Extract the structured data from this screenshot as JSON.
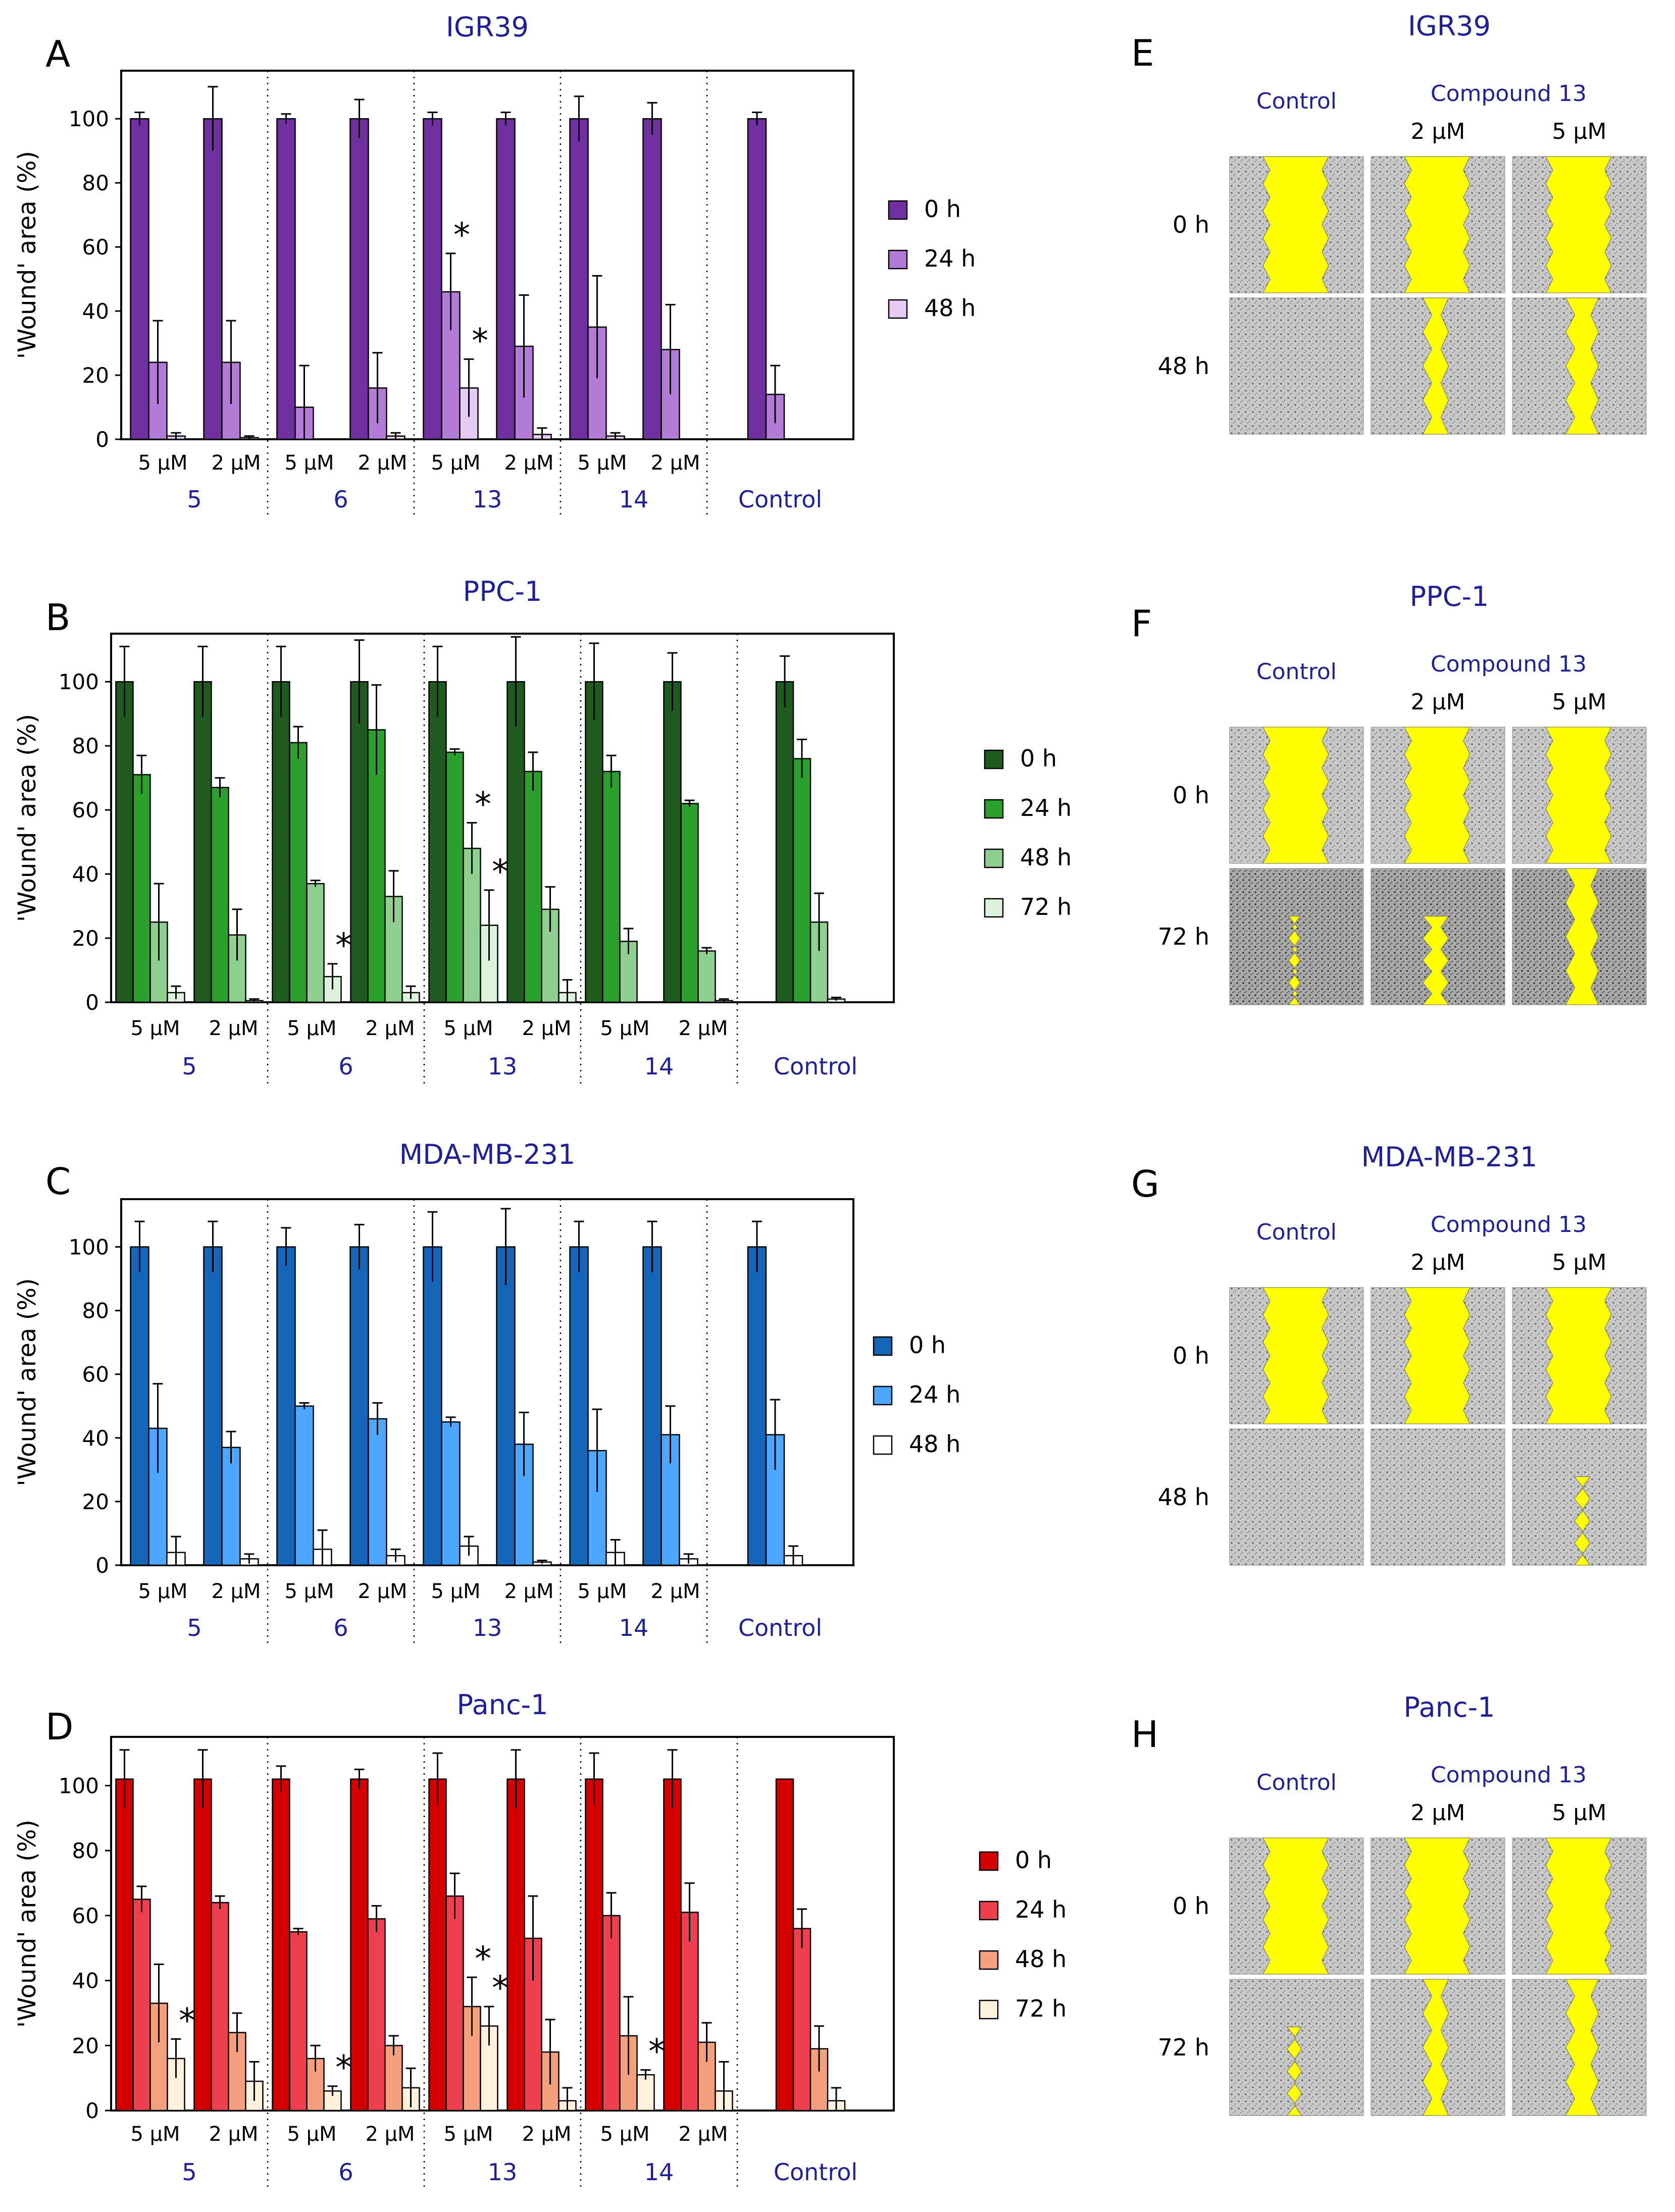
{
  "colors": {
    "title": "#1f1f99",
    "group_label": "#1f1f99",
    "wound_yellow": "#ffff00",
    "purple": [
      "#7030a0",
      "#b37ad6",
      "#e6ccf2"
    ],
    "green": [
      "#1f5a1f",
      "#2ca02c",
      "#8fcf8f",
      "#dcf2dc"
    ],
    "blue": [
      "#1565b8",
      "#4da6ff",
      "#ffffff"
    ],
    "red": [
      "#d40000",
      "#ee3f4f",
      "#f4a07c",
      "#fff1dc"
    ]
  },
  "chart_data": [
    {
      "panel": "A",
      "title": "IGR39",
      "type": "bar",
      "ylabel": "'Wound' area (%)",
      "ylim": [
        0,
        115
      ],
      "yticks": [
        0,
        20,
        40,
        60,
        80,
        100
      ],
      "legend": [
        "0 h",
        "24 h",
        "48 h"
      ],
      "color_key": "purple",
      "groups": [
        {
          "label": "5",
          "bars": [
            {
              "conc": "5 µM",
              "values": [
                100,
                24,
                1
              ],
              "errors": [
                2,
                13,
                1
              ],
              "stars": []
            },
            {
              "conc": "2 µM",
              "values": [
                100,
                24,
                0.5
              ],
              "errors": [
                10,
                13,
                0.5
              ],
              "stars": []
            }
          ]
        },
        {
          "label": "6",
          "bars": [
            {
              "conc": "5 µM",
              "values": [
                100,
                10,
                0
              ],
              "errors": [
                1.5,
                13,
                0
              ],
              "stars": []
            },
            {
              "conc": "2 µM",
              "values": [
                100,
                16,
                1
              ],
              "errors": [
                6,
                11,
                1
              ],
              "stars": []
            }
          ]
        },
        {
          "label": "13",
          "bars": [
            {
              "conc": "5 µM",
              "values": [
                100,
                46,
                16
              ],
              "errors": [
                2,
                12,
                9
              ],
              "stars": [
                1,
                2
              ]
            },
            {
              "conc": "2 µM",
              "values": [
                100,
                29,
                1.5
              ],
              "errors": [
                2,
                16,
                2
              ],
              "stars": []
            }
          ]
        },
        {
          "label": "14",
          "bars": [
            {
              "conc": "5 µM",
              "values": [
                100,
                35,
                1
              ],
              "errors": [
                7,
                16,
                1
              ],
              "stars": []
            },
            {
              "conc": "2 µM",
              "values": [
                100,
                28,
                0
              ],
              "errors": [
                5,
                14,
                0
              ],
              "stars": []
            }
          ]
        },
        {
          "label": "Control",
          "bars": [
            {
              "conc": "",
              "values": [
                100,
                14,
                0
              ],
              "errors": [
                2,
                9,
                0
              ],
              "stars": []
            }
          ]
        }
      ]
    },
    {
      "panel": "B",
      "title": "PPC-1",
      "type": "bar",
      "ylabel": "'Wound' area (%)",
      "ylim": [
        0,
        115
      ],
      "yticks": [
        0,
        20,
        40,
        60,
        80,
        100
      ],
      "legend": [
        "0 h",
        "24 h",
        "48 h",
        "72 h"
      ],
      "color_key": "green",
      "groups": [
        {
          "label": "5",
          "bars": [
            {
              "conc": "5 µM",
              "values": [
                100,
                71,
                25,
                3
              ],
              "errors": [
                11,
                6,
                12,
                2
              ],
              "stars": []
            },
            {
              "conc": "2 µM",
              "values": [
                100,
                67,
                21,
                0.5
              ],
              "errors": [
                11,
                3,
                8,
                0.5
              ],
              "stars": []
            }
          ]
        },
        {
          "label": "6",
          "bars": [
            {
              "conc": "5 µM",
              "values": [
                100,
                81,
                37,
                8
              ],
              "errors": [
                11,
                5,
                1,
                4
              ],
              "stars": [
                3
              ]
            },
            {
              "conc": "2 µM",
              "values": [
                100,
                85,
                33,
                3
              ],
              "errors": [
                13,
                14,
                8,
                2
              ],
              "stars": []
            }
          ]
        },
        {
          "label": "13",
          "bars": [
            {
              "conc": "5 µM",
              "values": [
                100,
                78,
                48,
                24
              ],
              "errors": [
                11,
                1,
                8,
                11
              ],
              "stars": [
                2,
                3
              ]
            },
            {
              "conc": "2 µM",
              "values": [
                100,
                72,
                29,
                3
              ],
              "errors": [
                14,
                6,
                7,
                4
              ],
              "stars": []
            }
          ]
        },
        {
          "label": "14",
          "bars": [
            {
              "conc": "5 µM",
              "values": [
                100,
                72,
                19,
                0
              ],
              "errors": [
                12,
                5,
                4,
                0
              ],
              "stars": []
            },
            {
              "conc": "2 µM",
              "values": [
                100,
                62,
                16,
                0.5
              ],
              "errors": [
                9,
                1,
                1,
                0.5
              ],
              "stars": []
            }
          ]
        },
        {
          "label": "Control",
          "bars": [
            {
              "conc": "",
              "values": [
                100,
                76,
                25,
                1
              ],
              "errors": [
                8,
                6,
                9,
                0.5
              ],
              "stars": []
            }
          ]
        }
      ]
    },
    {
      "panel": "C",
      "title": "MDA-MB-231",
      "type": "bar",
      "ylabel": "'Wound' area (%)",
      "ylim": [
        0,
        115
      ],
      "yticks": [
        0,
        20,
        40,
        60,
        80,
        100
      ],
      "legend": [
        "0 h",
        "24 h",
        "48 h"
      ],
      "color_key": "blue",
      "groups": [
        {
          "label": "5",
          "bars": [
            {
              "conc": "5 µM",
              "values": [
                100,
                43,
                4
              ],
              "errors": [
                8,
                14,
                5
              ],
              "stars": []
            },
            {
              "conc": "2 µM",
              "values": [
                100,
                37,
                2
              ],
              "errors": [
                8,
                5,
                1.5
              ],
              "stars": []
            }
          ]
        },
        {
          "label": "6",
          "bars": [
            {
              "conc": "5 µM",
              "values": [
                100,
                50,
                5
              ],
              "errors": [
                6,
                1,
                6
              ],
              "stars": []
            },
            {
              "conc": "2 µM",
              "values": [
                100,
                46,
                3
              ],
              "errors": [
                7,
                5,
                2
              ],
              "stars": []
            }
          ]
        },
        {
          "label": "13",
          "bars": [
            {
              "conc": "5 µM",
              "values": [
                100,
                45,
                6
              ],
              "errors": [
                11,
                1.5,
                3
              ],
              "stars": []
            },
            {
              "conc": "2 µM",
              "values": [
                100,
                38,
                1
              ],
              "errors": [
                12,
                10,
                0.5
              ],
              "stars": []
            }
          ]
        },
        {
          "label": "14",
          "bars": [
            {
              "conc": "5 µM",
              "values": [
                100,
                36,
                4
              ],
              "errors": [
                8,
                13,
                4
              ],
              "stars": []
            },
            {
              "conc": "2 µM",
              "values": [
                100,
                41,
                2
              ],
              "errors": [
                8,
                9,
                1.5
              ],
              "stars": []
            }
          ]
        },
        {
          "label": "Control",
          "bars": [
            {
              "conc": "",
              "values": [
                100,
                41,
                3
              ],
              "errors": [
                8,
                11,
                3
              ],
              "stars": []
            }
          ]
        }
      ]
    },
    {
      "panel": "D",
      "title": "Panc-1",
      "type": "bar",
      "ylabel": "'Wound' area (%)",
      "ylim": [
        0,
        115
      ],
      "yticks": [
        0,
        20,
        40,
        60,
        80,
        100
      ],
      "legend": [
        "0 h",
        "24 h",
        "48 h",
        "72 h"
      ],
      "color_key": "red",
      "groups": [
        {
          "label": "5",
          "bars": [
            {
              "conc": "5 µM",
              "values": [
                102,
                65,
                33,
                16
              ],
              "errors": [
                9,
                4,
                12,
                6
              ],
              "stars": [
                3
              ]
            },
            {
              "conc": "2 µM",
              "values": [
                102,
                64,
                24,
                9
              ],
              "errors": [
                9,
                2,
                6,
                6
              ],
              "stars": []
            }
          ]
        },
        {
          "label": "6",
          "bars": [
            {
              "conc": "5 µM",
              "values": [
                102,
                55,
                16,
                6
              ],
              "errors": [
                4,
                1,
                4,
                1.5
              ],
              "stars": [
                3
              ]
            },
            {
              "conc": "2 µM",
              "values": [
                102,
                59,
                20,
                7
              ],
              "errors": [
                3,
                4,
                3,
                6
              ],
              "stars": []
            }
          ]
        },
        {
          "label": "13",
          "bars": [
            {
              "conc": "5 µM",
              "values": [
                102,
                66,
                32,
                26
              ],
              "errors": [
                8,
                7,
                9,
                6
              ],
              "stars": [
                2,
                3
              ]
            },
            {
              "conc": "2 µM",
              "values": [
                102,
                53,
                18,
                3
              ],
              "errors": [
                9,
                13,
                10,
                4
              ],
              "stars": []
            }
          ]
        },
        {
          "label": "14",
          "bars": [
            {
              "conc": "5 µM",
              "values": [
                102,
                60,
                23,
                11
              ],
              "errors": [
                8,
                7,
                12,
                1.5
              ],
              "stars": [
                3
              ]
            },
            {
              "conc": "2 µM",
              "values": [
                102,
                61,
                21,
                6
              ],
              "errors": [
                9,
                9,
                6,
                9
              ],
              "stars": []
            }
          ]
        },
        {
          "label": "Control",
          "bars": [
            {
              "conc": "",
              "values": [
                102,
                56,
                19,
                3
              ],
              "errors": [
                0,
                6,
                7,
                4
              ],
              "stars": []
            }
          ]
        }
      ]
    }
  ],
  "image_panels": [
    {
      "panel": "E",
      "title": "IGR39",
      "col_header": "Control",
      "compound_header": "Compound 13",
      "conc_labels": [
        "2 µM",
        "5 µM"
      ],
      "row_labels": [
        "0 h",
        "48 h"
      ]
    },
    {
      "panel": "F",
      "title": "PPC-1",
      "col_header": "Control",
      "compound_header": "Compound 13",
      "conc_labels": [
        "2 µM",
        "5 µM"
      ],
      "row_labels": [
        "0 h",
        "72 h"
      ]
    },
    {
      "panel": "G",
      "title": "MDA-MB-231",
      "col_header": "Control",
      "compound_header": "Compound 13",
      "conc_labels": [
        "2 µM",
        "5 µM"
      ],
      "row_labels": [
        "0 h",
        "48 h"
      ]
    },
    {
      "panel": "H",
      "title": "Panc-1",
      "col_header": "Control",
      "compound_header": "Compound 13",
      "conc_labels": [
        "2 µM",
        "5 µM"
      ],
      "row_labels": [
        "0 h",
        "72 h"
      ]
    }
  ]
}
